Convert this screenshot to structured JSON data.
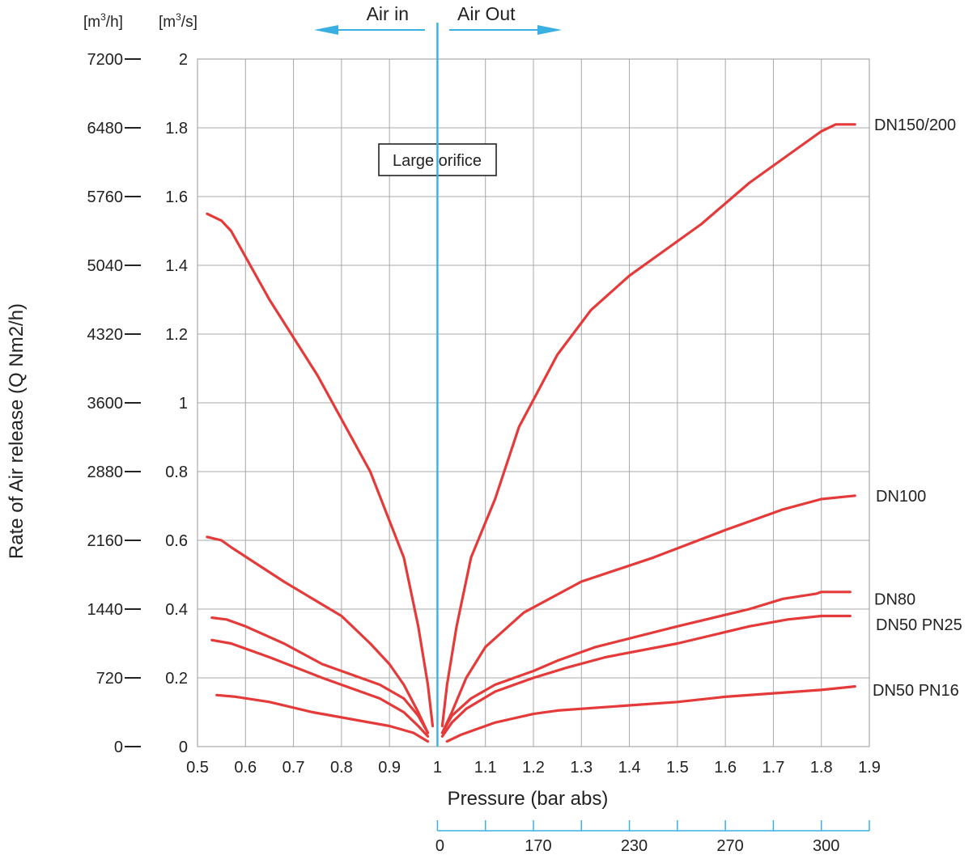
{
  "chart_data": {
    "type": "line",
    "title": "",
    "xlabel": "Pressure (bar abs)",
    "ylabel": "Rate of Air release (Q Nm2/h)",
    "xlim": [
      0.5,
      1.9
    ],
    "ylim": [
      0,
      2
    ],
    "x_ticks": [
      "0.5",
      "0.6",
      "0.7",
      "0.8",
      "0.9",
      "1",
      "1.1",
      "1.2",
      "1.3",
      "1.4",
      "1.5",
      "1.6",
      "1.7",
      "1.8",
      "1.9"
    ],
    "y_ticks_m3s": [
      "0",
      "0.2",
      "0.4",
      "0.6",
      "0.8",
      "1",
      "1.2",
      "1.4",
      "1.6",
      "1.8",
      "2"
    ],
    "y_ticks_m3h": [
      "0",
      "720",
      "1440",
      "2160",
      "2880",
      "3600",
      "4320",
      "5040",
      "5760",
      "6480",
      "7200"
    ],
    "y_unit_m3h": "[m3/h]",
    "y_unit_m3s": "[m3/s]",
    "secondary_x_ticks": [
      "0",
      "170",
      "230",
      "270",
      "300"
    ],
    "divider_x": 1,
    "direction_labels": {
      "left": "Air in",
      "right": "Air Out"
    },
    "annotation": "Large orifice",
    "grid": true,
    "line_color": "#e53a3a",
    "accent_color": "#3ab0e2",
    "series": [
      {
        "name": "DN150/200",
        "left": [
          [
            0.52,
            1.55
          ],
          [
            0.55,
            1.53
          ],
          [
            0.57,
            1.5
          ],
          [
            0.65,
            1.3
          ],
          [
            0.75,
            1.08
          ],
          [
            0.86,
            0.8
          ],
          [
            0.93,
            0.55
          ],
          [
            0.96,
            0.35
          ],
          [
            0.98,
            0.18
          ],
          [
            0.99,
            0.06
          ]
        ],
        "right": [
          [
            1.01,
            0.06
          ],
          [
            1.02,
            0.18
          ],
          [
            1.04,
            0.35
          ],
          [
            1.07,
            0.55
          ],
          [
            1.12,
            0.72
          ],
          [
            1.17,
            0.93
          ],
          [
            1.25,
            1.14
          ],
          [
            1.32,
            1.27
          ],
          [
            1.4,
            1.37
          ],
          [
            1.55,
            1.52
          ],
          [
            1.65,
            1.64
          ],
          [
            1.75,
            1.74
          ],
          [
            1.8,
            1.79
          ],
          [
            1.83,
            1.81
          ],
          [
            1.87,
            1.81
          ]
        ]
      },
      {
        "name": "DN100",
        "left": [
          [
            0.52,
            0.61
          ],
          [
            0.55,
            0.6
          ],
          [
            0.57,
            0.58
          ],
          [
            0.68,
            0.48
          ],
          [
            0.8,
            0.38
          ],
          [
            0.86,
            0.3
          ],
          [
            0.9,
            0.24
          ],
          [
            0.93,
            0.18
          ],
          [
            0.96,
            0.1
          ],
          [
            0.98,
            0.04
          ]
        ],
        "right": [
          [
            1.01,
            0.04
          ],
          [
            1.03,
            0.1
          ],
          [
            1.06,
            0.2
          ],
          [
            1.1,
            0.29
          ],
          [
            1.18,
            0.39
          ],
          [
            1.3,
            0.48
          ],
          [
            1.45,
            0.55
          ],
          [
            1.6,
            0.63
          ],
          [
            1.72,
            0.69
          ],
          [
            1.8,
            0.72
          ],
          [
            1.87,
            0.73
          ]
        ]
      },
      {
        "name": "DN80",
        "left": [
          [
            0.53,
            0.375
          ],
          [
            0.56,
            0.37
          ],
          [
            0.6,
            0.35
          ],
          [
            0.68,
            0.3
          ],
          [
            0.76,
            0.24
          ],
          [
            0.88,
            0.18
          ],
          [
            0.93,
            0.14
          ],
          [
            0.96,
            0.09
          ],
          [
            0.98,
            0.04
          ]
        ],
        "right": [
          [
            1.01,
            0.04
          ],
          [
            1.03,
            0.09
          ],
          [
            1.07,
            0.14
          ],
          [
            1.12,
            0.18
          ],
          [
            1.2,
            0.22
          ],
          [
            1.25,
            0.25
          ],
          [
            1.33,
            0.29
          ],
          [
            1.5,
            0.35
          ],
          [
            1.65,
            0.4
          ],
          [
            1.72,
            0.43
          ],
          [
            1.79,
            0.445
          ],
          [
            1.8,
            0.45
          ],
          [
            1.86,
            0.45
          ]
        ]
      },
      {
        "name": "DN50 PN25",
        "left": [
          [
            0.53,
            0.31
          ],
          [
            0.57,
            0.3
          ],
          [
            0.65,
            0.26
          ],
          [
            0.76,
            0.2
          ],
          [
            0.88,
            0.14
          ],
          [
            0.93,
            0.1
          ],
          [
            0.96,
            0.06
          ],
          [
            0.98,
            0.03
          ]
        ],
        "right": [
          [
            1.01,
            0.03
          ],
          [
            1.03,
            0.07
          ],
          [
            1.06,
            0.11
          ],
          [
            1.12,
            0.16
          ],
          [
            1.2,
            0.2
          ],
          [
            1.27,
            0.23
          ],
          [
            1.35,
            0.26
          ],
          [
            1.5,
            0.3
          ],
          [
            1.65,
            0.35
          ],
          [
            1.73,
            0.37
          ],
          [
            1.8,
            0.38
          ],
          [
            1.86,
            0.38
          ]
        ]
      },
      {
        "name": "DN50 PN16",
        "left": [
          [
            0.54,
            0.15
          ],
          [
            0.58,
            0.145
          ],
          [
            0.65,
            0.13
          ],
          [
            0.74,
            0.1
          ],
          [
            0.82,
            0.08
          ],
          [
            0.9,
            0.06
          ],
          [
            0.95,
            0.04
          ],
          [
            0.98,
            0.015
          ]
        ],
        "right": [
          [
            1.02,
            0.015
          ],
          [
            1.05,
            0.035
          ],
          [
            1.12,
            0.07
          ],
          [
            1.2,
            0.095
          ],
          [
            1.25,
            0.105
          ],
          [
            1.4,
            0.12
          ],
          [
            1.5,
            0.13
          ],
          [
            1.6,
            0.145
          ],
          [
            1.7,
            0.155
          ],
          [
            1.8,
            0.165
          ],
          [
            1.87,
            0.175
          ]
        ]
      }
    ]
  }
}
